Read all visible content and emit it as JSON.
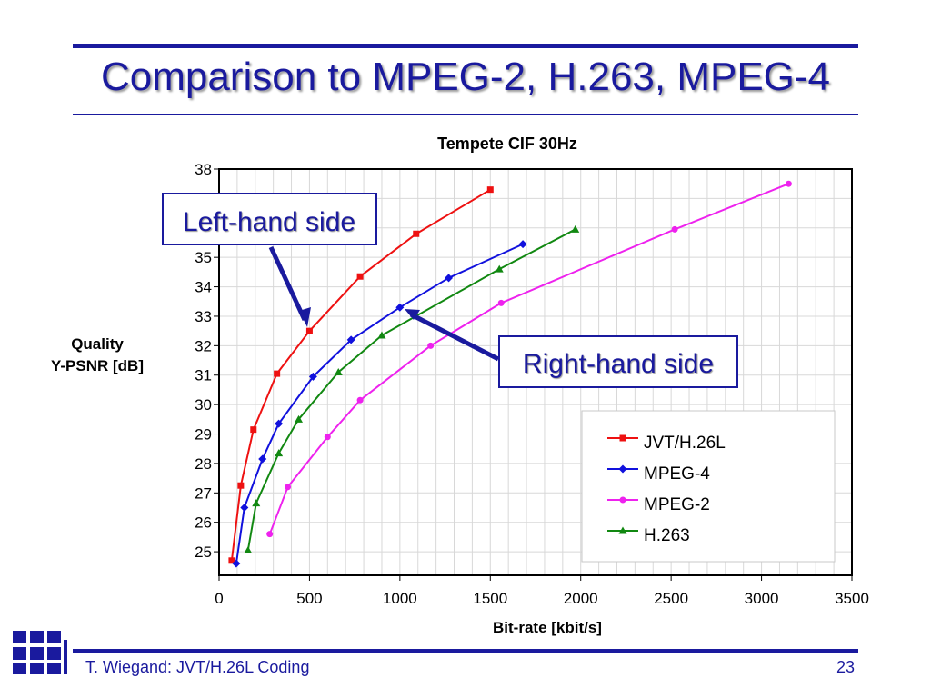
{
  "slide": {
    "title": "Comparison to MPEG-2, H.263, MPEG-4",
    "footer_text": "T. Wiegand: JVT/H.26L Coding",
    "page_number": "23",
    "accent_color": "#1a1a9e"
  },
  "callouts": {
    "left": "Left-hand side",
    "right": "Right-hand side"
  },
  "chart_data": {
    "type": "line",
    "title": "Tempete CIF 30Hz",
    "xlabel": "Bit-rate [kbit/s]",
    "ylabel_lines": [
      "Quality",
      "Y-PSNR [dB]"
    ],
    "xlim": [
      0,
      3500
    ],
    "ylim": [
      24.2,
      38
    ],
    "xticks": [
      0,
      500,
      1000,
      1500,
      2000,
      2500,
      3000,
      3500
    ],
    "yticks": [
      25,
      26,
      27,
      28,
      29,
      30,
      31,
      32,
      33,
      34,
      35,
      38
    ],
    "grid": true,
    "legend_position": "bottom-right",
    "series": [
      {
        "name": "JVT/H.26L",
        "color": "#ee1111",
        "marker": "square",
        "points": [
          [
            70,
            24.7
          ],
          [
            120,
            27.25
          ],
          [
            190,
            29.15
          ],
          [
            320,
            31.05
          ],
          [
            500,
            32.5
          ],
          [
            780,
            34.35
          ],
          [
            1090,
            35.8
          ],
          [
            1500,
            37.3
          ]
        ]
      },
      {
        "name": "MPEG-4",
        "color": "#1111dd",
        "marker": "diamond",
        "points": [
          [
            95,
            24.6
          ],
          [
            140,
            26.5
          ],
          [
            240,
            28.15
          ],
          [
            330,
            29.35
          ],
          [
            520,
            30.95
          ],
          [
            730,
            32.2
          ],
          [
            1000,
            33.3
          ],
          [
            1270,
            34.3
          ],
          [
            1680,
            35.45
          ]
        ]
      },
      {
        "name": "MPEG-2",
        "color": "#ee22ee",
        "marker": "circle",
        "points": [
          [
            280,
            25.6
          ],
          [
            380,
            27.2
          ],
          [
            600,
            28.9
          ],
          [
            780,
            30.15
          ],
          [
            1170,
            32.0
          ],
          [
            1560,
            33.45
          ],
          [
            2520,
            35.95
          ],
          [
            3150,
            37.5
          ]
        ]
      },
      {
        "name": "H.263",
        "color": "#118811",
        "marker": "triangle",
        "points": [
          [
            160,
            25.05
          ],
          [
            205,
            26.65
          ],
          [
            330,
            28.35
          ],
          [
            440,
            29.5
          ],
          [
            660,
            31.1
          ],
          [
            900,
            32.35
          ],
          [
            1550,
            34.6
          ],
          [
            1970,
            35.95
          ]
        ]
      }
    ]
  }
}
